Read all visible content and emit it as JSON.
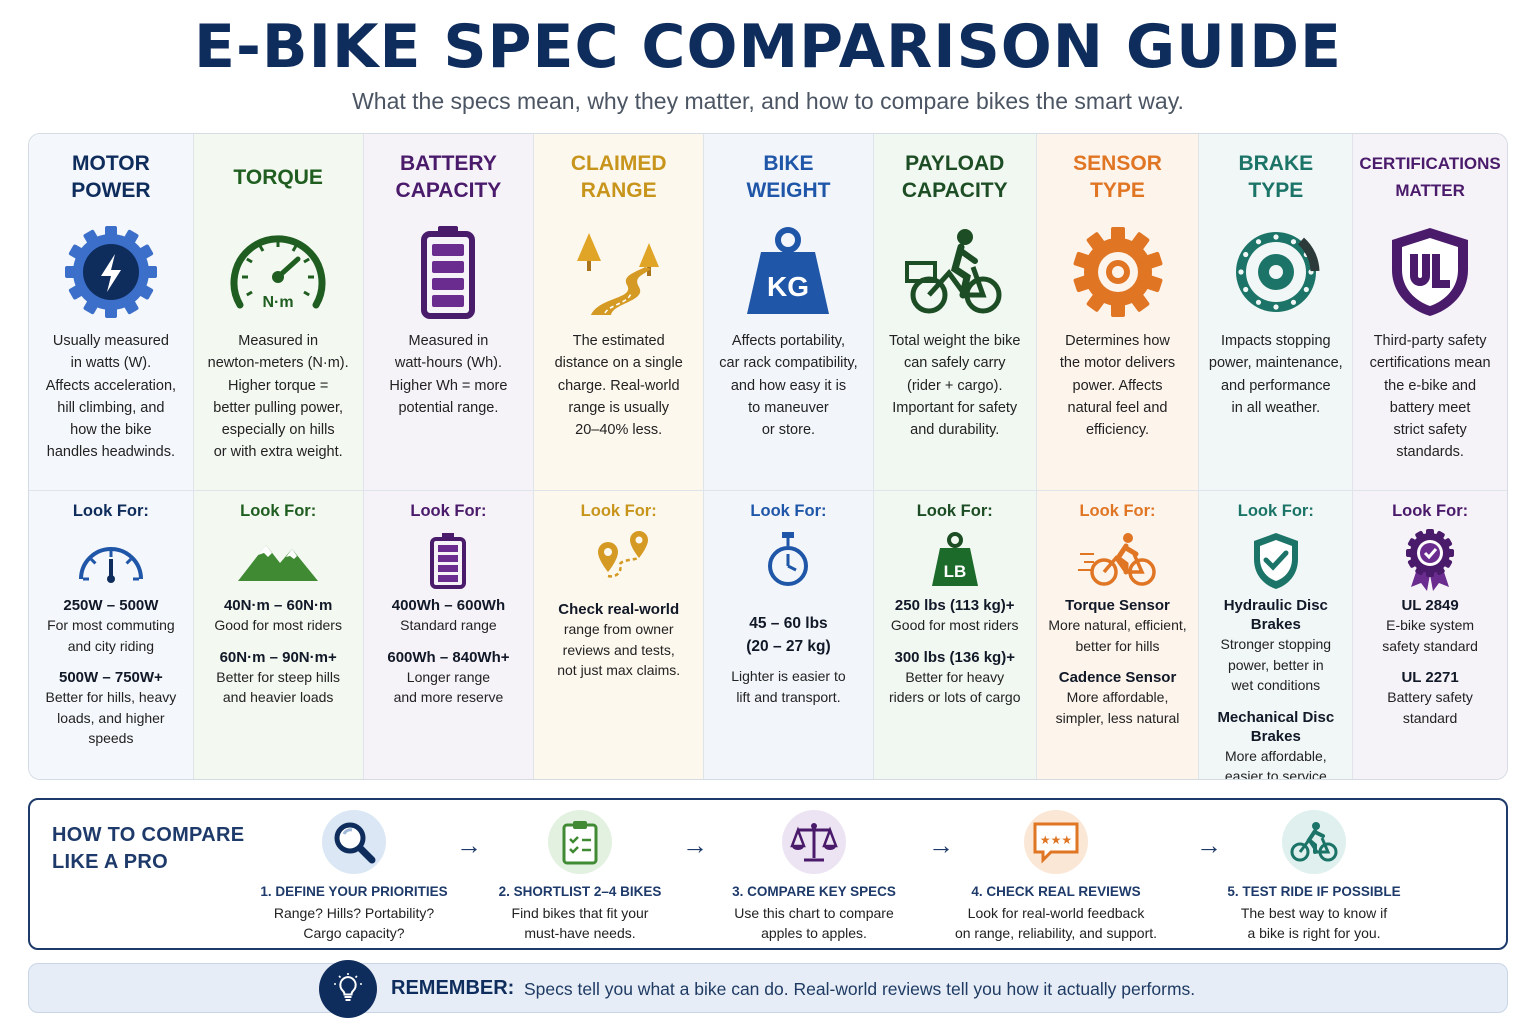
{
  "header": {
    "title": "E-BIKE SPEC COMPARISON GUIDE",
    "subtitle": "What the specs mean, why they matter, and how to compare bikes the smart way."
  },
  "look_for_label": "Look For:",
  "columns": [
    {
      "title": "MOTOR\nPOWER",
      "color": "#0f2d5c",
      "bg": "#f4f7fb",
      "icon": "motor-gear-bolt-icon",
      "look_icon": "speedometer-icon",
      "description": "Usually measured\nin watts (W).\nAffects acceleration,\nhill climbing, and\nhow the bike\nhandles headwinds.",
      "specs": [
        {
          "value": "250W – 500W",
          "note": "For most commuting\nand city riding"
        },
        {
          "value": "500W – 750W+",
          "note": "Better for hills, heavy\nloads, and higher\nspeeds"
        }
      ]
    },
    {
      "title": "TORQUE",
      "color": "#1f5e20",
      "bg": "#f3f8f1",
      "icon": "torque-gauge-icon",
      "look_icon": "mountain-icon",
      "description": "Measured in\nnewton-meters (N·m).\nHigher torque =\nbetter pulling power,\nespecially on hills\nor with extra weight.",
      "specs": [
        {
          "value": "40N·m – 60N·m",
          "note": "Good for most riders"
        },
        {
          "value": "60N·m – 90N·m+",
          "note": "Better for steep hills\nand heavier loads"
        }
      ]
    },
    {
      "title": "BATTERY\nCAPACITY",
      "color": "#4a1a6b",
      "bg": "#f6f3f8",
      "icon": "battery-icon",
      "look_icon": "battery-small-icon",
      "description": "Measured in\nwatt-hours (Wh).\nHigher Wh = more\npotential range.",
      "specs": [
        {
          "value": "400Wh – 600Wh",
          "note": "Standard range"
        },
        {
          "value": "600Wh – 840Wh+",
          "note": "Longer range\nand more reserve"
        }
      ]
    },
    {
      "title": "CLAIMED\nRANGE",
      "color": "#c8951c",
      "bg": "#fdf8ee",
      "icon": "road-trees-icon",
      "look_icon": "route-pins-icon",
      "description": "The estimated\ndistance on a single\ncharge. Real-world\nrange is usually\n20–40% less.",
      "specs": [
        {
          "value": "Check real-world",
          "note": "range from owner\nreviews and tests,\nnot just max claims."
        }
      ]
    },
    {
      "title": "BIKE\nWEIGHT",
      "color": "#1f56a8",
      "bg": "#f2f6fb",
      "icon": "kg-weight-icon",
      "look_icon": "stopwatch-icon",
      "description": "Affects portability,\ncar rack compatibility,\nand how easy it is\nto maneuver\nor store.",
      "specs": [
        {
          "value": "45 – 60 lbs\n(20 – 27 kg)",
          "note": "Lighter is easier to\nlift and transport."
        }
      ]
    },
    {
      "title": "PAYLOAD\nCAPACITY",
      "color": "#1d4d24",
      "bg": "#f1f7f1",
      "icon": "cargo-bike-rider-icon",
      "look_icon": "lb-weight-icon",
      "description": "Total weight the bike\ncan safely carry\n(rider + cargo).\nImportant for safety\nand durability.",
      "specs": [
        {
          "value": "250 lbs (113 kg)+",
          "note": "Good for most riders"
        },
        {
          "value": "300 lbs (136 kg)+",
          "note": "Better for heavy\nriders or lots of cargo"
        }
      ]
    },
    {
      "title": "SENSOR\nTYPE",
      "color": "#e07523",
      "bg": "#fdf4ec",
      "icon": "sensor-gear-icon",
      "look_icon": "cyclist-icon",
      "description": "Determines how\nthe motor delivers\npower. Affects\nnatural feel and\nefficiency.",
      "specs": [
        {
          "value": "Torque Sensor",
          "note": "More natural, efficient,\nbetter for hills"
        },
        {
          "value": "Cadence Sensor",
          "note": "More affordable,\nsimpler, less natural"
        }
      ]
    },
    {
      "title": "BRAKE\nTYPE",
      "color": "#1b7467",
      "bg": "#f1f7f6",
      "icon": "disc-brake-icon",
      "look_icon": "shield-check-icon",
      "description": "Impacts stopping\npower, maintenance,\nand performance\nin all weather.",
      "specs": [
        {
          "value": "Hydraulic Disc\nBrakes",
          "note": "Stronger stopping\npower, better in\nwet conditions"
        },
        {
          "value": "Mechanical Disc\nBrakes",
          "note": "More affordable,\neasier to service"
        }
      ]
    },
    {
      "title": "CERTIFICATIONS\nMATTER",
      "color": "#4a1a6b",
      "bg": "#f6f3f8",
      "icon": "ul-shield-icon",
      "look_icon": "award-ribbon-icon",
      "description": "Third-party safety\ncertifications mean\nthe e-bike and\nbattery meet\nstrict safety\nstandards.",
      "specs": [
        {
          "value": "UL 2849",
          "note": "E-bike system\nsafety standard"
        },
        {
          "value": "UL 2271",
          "note": "Battery safety\nstandard"
        }
      ]
    }
  ],
  "how_to_compare": {
    "title": "HOW TO COMPARE\nLIKE A PRO",
    "steps": [
      {
        "label": "1. DEFINE YOUR PRIORITIES",
        "desc": "Range? Hills? Portability?\nCargo capacity?",
        "icon": "magnifier-icon",
        "color": "#dbe7f5"
      },
      {
        "label": "2. SHORTLIST 2–4 BIKES",
        "desc": "Find bikes that fit your\nmust-have needs.",
        "icon": "checklist-icon",
        "color": "#e3f1e1"
      },
      {
        "label": "3. COMPARE KEY SPECS",
        "desc": "Use this chart to compare\napples to apples.",
        "icon": "scale-icon",
        "color": "#ece4f3"
      },
      {
        "label": "4. CHECK REAL REVIEWS",
        "desc": "Look for real-world feedback\non range, reliability, and support.",
        "icon": "review-stars-icon",
        "color": "#fbe7d6"
      },
      {
        "label": "5. TEST RIDE IF POSSIBLE",
        "desc": "The best way to know if\na bike is right for you.",
        "icon": "bike-rider-icon",
        "color": "#dff0ee"
      }
    ]
  },
  "remember": {
    "label": "REMEMBER:",
    "text": "Specs tell you what a bike can do. Real-world reviews tell you how it actually performs."
  }
}
